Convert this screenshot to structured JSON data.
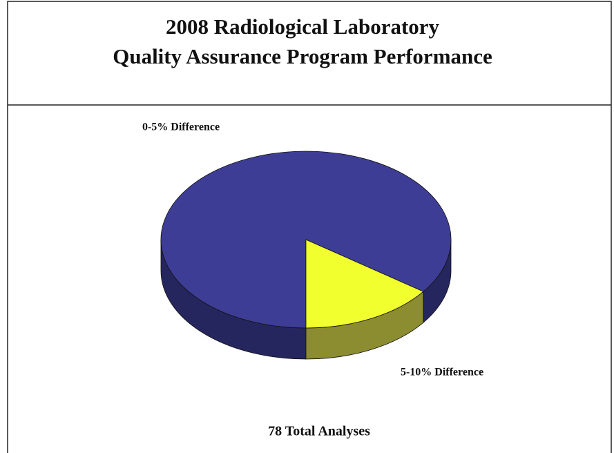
{
  "chart_data": {
    "type": "pie3d",
    "title": [
      "2008 Radiological Laboratory",
      "Quality Assurance Program Performance"
    ],
    "categories": [
      "0-5% Difference",
      "5-10% Difference"
    ],
    "values": [
      85,
      15
    ],
    "colors": [
      "#3d3d96",
      "#f2ff2e"
    ],
    "side_colors": [
      "#26265f",
      "#8c8c30"
    ],
    "annotation": "78 Total Analyses"
  }
}
